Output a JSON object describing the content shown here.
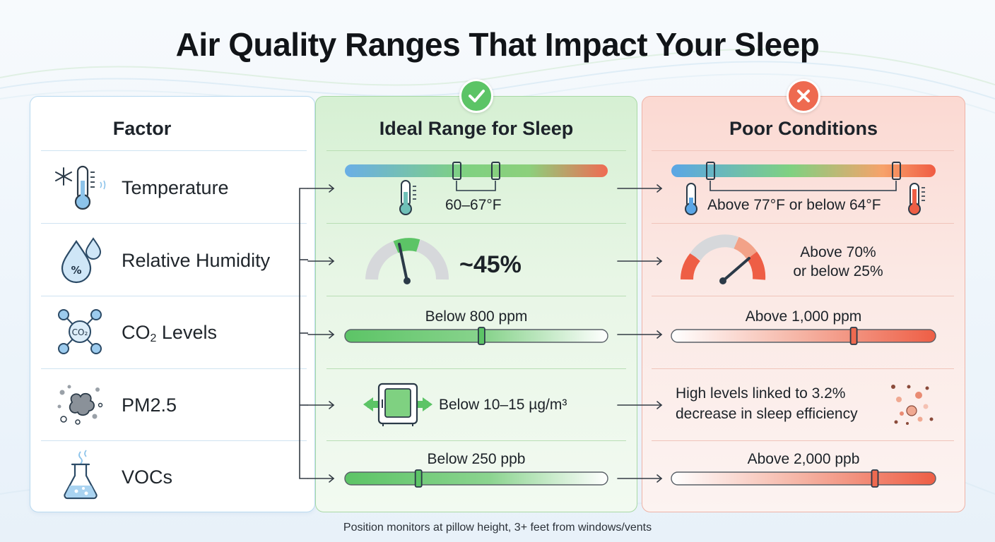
{
  "title": "Air Quality Ranges That Impact Your Sleep",
  "columns": {
    "factor": "Factor",
    "ideal": "Ideal Range for Sleep",
    "poor": "Poor Conditions"
  },
  "badges": {
    "ideal_icon": "check-icon",
    "poor_icon": "x-icon"
  },
  "rows": [
    {
      "factor": "Temperature",
      "icon": "thermometer-snowflake-icon",
      "ideal": "60–67°F",
      "poor": "Above 77°F or below 64°F"
    },
    {
      "factor": "Relative Humidity",
      "icon": "water-drops-percent-icon",
      "ideal": "~45%",
      "poor_line1": "Above 70%",
      "poor_line2": "or below 25%"
    },
    {
      "factor_main": "CO",
      "factor_sub": "2",
      "factor_tail": " Levels",
      "icon": "co2-molecule-icon",
      "ideal": "Below 800 ppm",
      "poor": "Above 1,000 ppm",
      "ideal_level": 0.52,
      "poor_level": 0.69
    },
    {
      "factor": "PM2.5",
      "icon": "dust-particles-icon",
      "ideal": "Below 10–15 µg/m³",
      "poor_line1": "High levels linked to 3.2%",
      "poor_line2": "decrease in sleep efficiency",
      "ideal_icon": "air-purifier-icon",
      "poor_icon": "particles-icon"
    },
    {
      "factor": "VOCs",
      "icon": "chemistry-flask-icon",
      "ideal": "Below 250 ppb",
      "poor": "Above 2,000 ppb",
      "ideal_level": 0.28,
      "poor_level": 0.77
    }
  ],
  "colors": {
    "ideal_green": "#5cc466",
    "poor_red": "#ee6a50",
    "icon_blue": "#3f86c4",
    "border_blue": "#b9daf0"
  },
  "footer": "Position monitors at pillow height, 3+ feet from windows/vents"
}
